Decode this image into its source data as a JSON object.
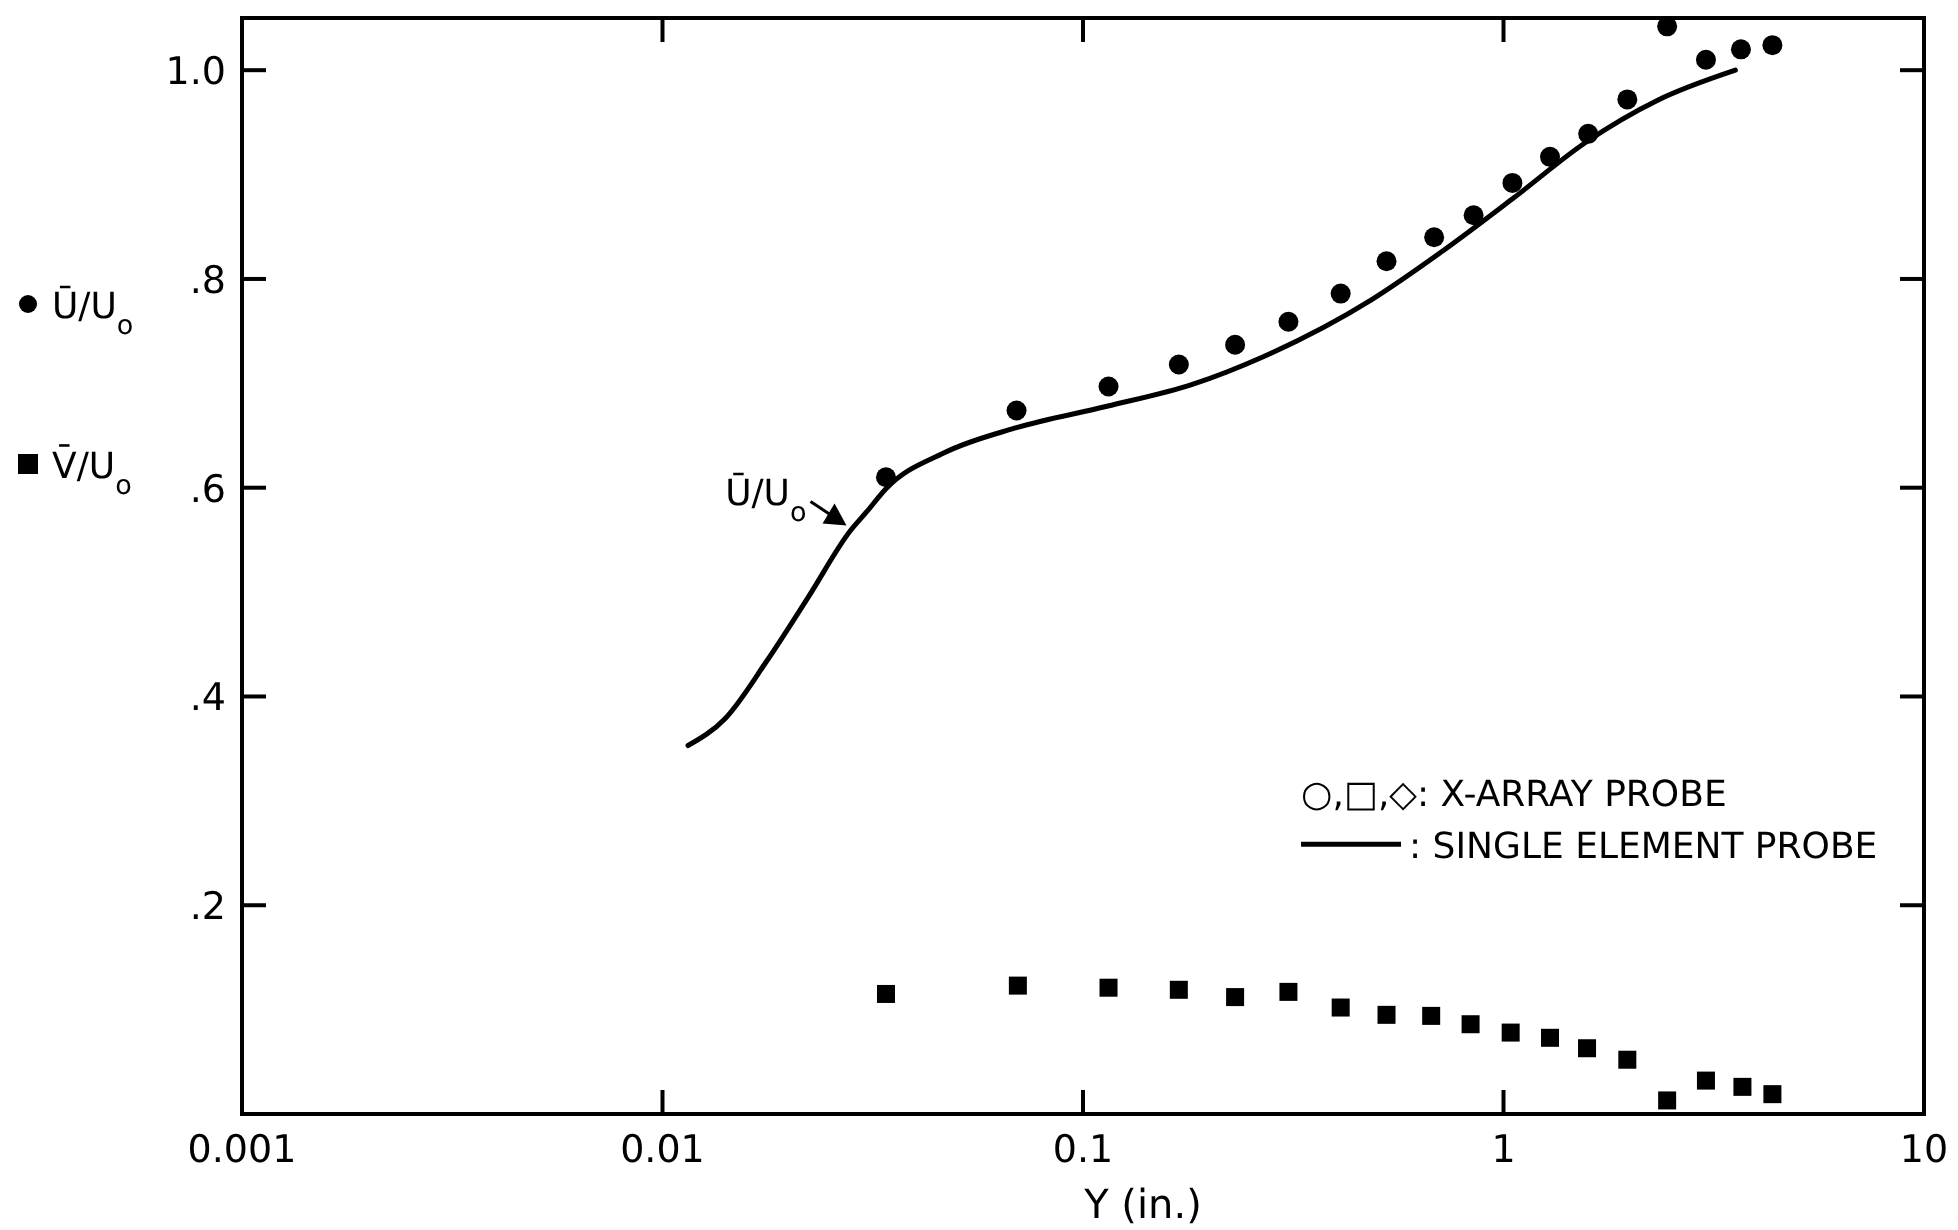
{
  "chart_data": {
    "type": "scatter",
    "xlabel": "Y (in.)",
    "log": "x",
    "xlim": [
      0.001,
      10
    ],
    "xticks": [
      0.001,
      0.01,
      0.1,
      1,
      10
    ],
    "ylim": [
      0,
      1.05
    ],
    "yticks": [
      {
        "value": 0.2,
        "label": ".2"
      },
      {
        "value": 0.4,
        "label": ".4"
      },
      {
        "value": 0.6,
        "label": ".6"
      },
      {
        "value": 0.8,
        "label": ".8"
      },
      {
        "value": 1,
        "label": "1.0"
      }
    ],
    "grid": false,
    "legend": "left",
    "series": [
      {
        "name": "Ū/U$_{o}$",
        "color": "#000000",
        "marker": "circle",
        "x": [
          0.034,
          0.0695,
          0.115,
          0.169,
          0.23,
          0.308,
          0.41,
          0.527,
          0.684,
          0.849,
          1.05,
          1.29,
          1.59,
          1.97,
          2.45,
          3.03,
          3.67,
          4.36
        ],
        "values": [
          0.61,
          0.674,
          0.697,
          0.718,
          0.737,
          0.759,
          0.786,
          0.817,
          0.84,
          0.861,
          0.892,
          0.917,
          0.939,
          0.972,
          1.042,
          1.01,
          1.02,
          1.024
        ]
      },
      {
        "name": "V̄/U$_{o}$",
        "color": "#000000",
        "marker": "square",
        "x": [
          0.034,
          0.07,
          0.115,
          0.169,
          0.23,
          0.308,
          0.41,
          0.527,
          0.673,
          0.835,
          1.04,
          1.29,
          1.58,
          1.97,
          2.45,
          3.03,
          3.7,
          4.36
        ],
        "values": [
          0.115,
          0.123,
          0.121,
          0.119,
          0.112,
          0.117,
          0.102,
          0.095,
          0.094,
          0.086,
          0.078,
          0.073,
          0.063,
          0.052,
          0.013,
          0.032,
          0.026,
          0.019
        ]
      },
      {
        "name": ": SINGLE ELEMENT PROBE",
        "type": "line",
        "color": "#000000",
        "marker": "none",
        "line_style": "solid",
        "x": [
          0.0115,
          0.0141,
          0.0177,
          0.0222,
          0.028,
          0.0306,
          0.034,
          0.0465,
          0.0687,
          0.114,
          0.182,
          0.27,
          0.485,
          0.718,
          1.06,
          1.57,
          2.32,
          3.56
        ],
        "values": [
          0.353,
          0.379,
          0.434,
          0.495,
          0.559,
          0.577,
          0.599,
          0.633,
          0.657,
          0.678,
          0.699,
          0.726,
          0.78,
          0.827,
          0.878,
          0.931,
          0.971,
          1.0
        ]
      }
    ],
    "annotations": [
      {
        "text": "Ū/U$_{o}$",
        "x": 0.028,
        "y": 0.56
      },
      "○,□,◇: X-ARRAY PROBE"
    ]
  }
}
